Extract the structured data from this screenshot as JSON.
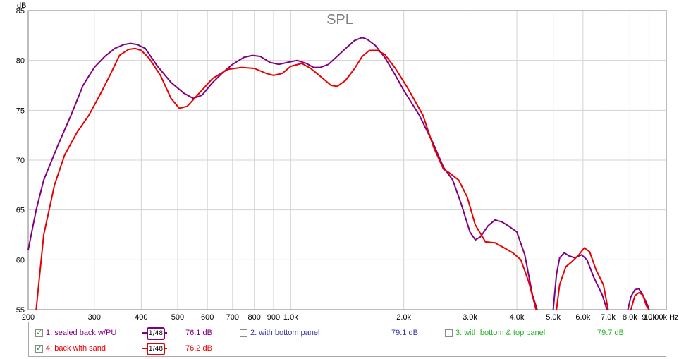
{
  "chart_data": {
    "type": "line",
    "title": "SPL",
    "ylabel": "dB",
    "x_unit": "Hz",
    "xscale": "log",
    "xlim": [
      200,
      10000
    ],
    "ylim": [
      55,
      85
    ],
    "grid": true,
    "x_ticks": [
      {
        "value": 200,
        "label": "200"
      },
      {
        "value": 300,
        "label": "300"
      },
      {
        "value": 400,
        "label": "400"
      },
      {
        "value": 500,
        "label": "500"
      },
      {
        "value": 600,
        "label": "600"
      },
      {
        "value": 700,
        "label": "700"
      },
      {
        "value": 800,
        "label": "800"
      },
      {
        "value": 900,
        "label": "900"
      },
      {
        "value": 1000,
        "label": "1.0k"
      },
      {
        "value": 2000,
        "label": "2.0k"
      },
      {
        "value": 3000,
        "label": "3.0k"
      },
      {
        "value": 4000,
        "label": "4.0k"
      },
      {
        "value": 5000,
        "label": "5.0k"
      },
      {
        "value": 6000,
        "label": "6.0k"
      },
      {
        "value": 7000,
        "label": "7.0k"
      },
      {
        "value": 8000,
        "label": "8.0k"
      },
      {
        "value": 9000,
        "label": "9.0k"
      },
      {
        "value": 10000,
        "label": "10.00k"
      }
    ],
    "y_ticks": [
      55,
      60,
      65,
      70,
      75,
      80,
      85
    ],
    "series": [
      {
        "name": "1: sealed back w/PU",
        "color": "#800080",
        "segments": [
          [
            [
              200,
              61
            ],
            [
              210,
              65
            ],
            [
              220,
              68
            ],
            [
              240,
              71.5
            ],
            [
              260,
              74.5
            ],
            [
              280,
              77.5
            ],
            [
              300,
              79.3
            ],
            [
              320,
              80.4
            ],
            [
              340,
              81.2
            ],
            [
              360,
              81.6
            ],
            [
              375,
              81.7
            ],
            [
              390,
              81.6
            ],
            [
              410,
              81.2
            ],
            [
              440,
              79.5
            ],
            [
              480,
              77.8
            ],
            [
              520,
              76.7
            ],
            [
              550,
              76.2
            ],
            [
              580,
              76.5
            ],
            [
              620,
              77.8
            ],
            [
              660,
              78.8
            ],
            [
              700,
              79.6
            ],
            [
              750,
              80.3
            ],
            [
              790,
              80.5
            ],
            [
              830,
              80.4
            ],
            [
              880,
              79.8
            ],
            [
              930,
              79.6
            ],
            [
              980,
              79.8
            ],
            [
              1040,
              80.0
            ],
            [
              1100,
              79.7
            ],
            [
              1150,
              79.3
            ],
            [
              1200,
              79.3
            ],
            [
              1260,
              79.6
            ],
            [
              1320,
              80.3
            ],
            [
              1400,
              81.2
            ],
            [
              1480,
              82.0
            ],
            [
              1550,
              82.3
            ],
            [
              1600,
              82.1
            ],
            [
              1680,
              81.5
            ],
            [
              1780,
              80.3
            ],
            [
              1900,
              78.5
            ],
            [
              2000,
              77.0
            ],
            [
              2200,
              74.5
            ],
            [
              2400,
              71.6
            ],
            [
              2550,
              69.3
            ],
            [
              2700,
              68.0
            ],
            [
              2850,
              65.5
            ],
            [
              3000,
              62.8
            ],
            [
              3100,
              62.0
            ],
            [
              3200,
              62.3
            ],
            [
              3350,
              63.4
            ],
            [
              3500,
              64.0
            ],
            [
              3650,
              63.8
            ],
            [
              3800,
              63.4
            ],
            [
              4000,
              62.8
            ],
            [
              4200,
              60.5
            ],
            [
              4400,
              56.5
            ],
            [
              4530,
              55.0
            ]
          ],
          [
            [
              5000,
              55.0
            ],
            [
              5100,
              58.5
            ],
            [
              5200,
              60.2
            ],
            [
              5350,
              60.7
            ],
            [
              5500,
              60.4
            ],
            [
              5700,
              60.2
            ],
            [
              5950,
              60.5
            ],
            [
              6150,
              60.0
            ],
            [
              6400,
              58.3
            ],
            [
              6750,
              56.5
            ],
            [
              6950,
              55.0
            ]
          ],
          [
            [
              7900,
              55.0
            ],
            [
              8050,
              56.3
            ],
            [
              8250,
              57.0
            ],
            [
              8450,
              57.1
            ],
            [
              8650,
              56.5
            ],
            [
              8900,
              55.5
            ],
            [
              9000,
              55.0
            ]
          ]
        ]
      },
      {
        "name": "4: back with sand",
        "color": "#e80000",
        "segments": [
          [
            [
              210,
              55
            ],
            [
              220,
              62.5
            ],
            [
              235,
              67.5
            ],
            [
              250,
              70.5
            ],
            [
              270,
              72.8
            ],
            [
              290,
              74.5
            ],
            [
              310,
              76.5
            ],
            [
              330,
              78.5
            ],
            [
              350,
              80.5
            ],
            [
              370,
              81.1
            ],
            [
              385,
              81.2
            ],
            [
              400,
              81
            ],
            [
              420,
              80.2
            ],
            [
              450,
              78.5
            ],
            [
              480,
              76.2
            ],
            [
              505,
              75.2
            ],
            [
              530,
              75.4
            ],
            [
              570,
              76.7
            ],
            [
              620,
              78.2
            ],
            [
              680,
              79.1
            ],
            [
              740,
              79.3
            ],
            [
              800,
              79.2
            ],
            [
              860,
              78.7
            ],
            [
              900,
              78.5
            ],
            [
              950,
              78.7
            ],
            [
              1000,
              79.4
            ],
            [
              1070,
              79.7
            ],
            [
              1130,
              79.2
            ],
            [
              1200,
              78.4
            ],
            [
              1280,
              77.5
            ],
            [
              1330,
              77.4
            ],
            [
              1400,
              78
            ],
            [
              1480,
              79.2
            ],
            [
              1550,
              80.4
            ],
            [
              1620,
              81.0
            ],
            [
              1700,
              81
            ],
            [
              1780,
              80.6
            ],
            [
              1900,
              79.2
            ],
            [
              2050,
              77.2
            ],
            [
              2250,
              74.5
            ],
            [
              2400,
              71.3
            ],
            [
              2550,
              69.1
            ],
            [
              2650,
              68.7
            ],
            [
              2800,
              68
            ],
            [
              2950,
              66.3
            ],
            [
              3100,
              63.5
            ],
            [
              3300,
              61.8
            ],
            [
              3500,
              61.7
            ],
            [
              3700,
              61.2
            ],
            [
              3900,
              60.7
            ],
            [
              4100,
              60
            ],
            [
              4300,
              57.8
            ],
            [
              4500,
              55.0
            ]
          ],
          [
            [
              5100,
              55.0
            ],
            [
              5200,
              57.5
            ],
            [
              5400,
              59.3
            ],
            [
              5600,
              59.8
            ],
            [
              5850,
              60.5
            ],
            [
              6050,
              61.2
            ],
            [
              6250,
              60.8
            ],
            [
              6500,
              59
            ],
            [
              6800,
              57.5
            ],
            [
              7000,
              55.0
            ]
          ],
          [
            [
              8050,
              55.0
            ],
            [
              8250,
              56.4
            ],
            [
              8450,
              56.7
            ],
            [
              8650,
              56.5
            ],
            [
              8850,
              55.4
            ],
            [
              9000,
              55.0
            ]
          ]
        ]
      }
    ]
  },
  "legend": {
    "items": [
      {
        "label": "1: sealed back w/PU",
        "checked": true,
        "color": "#800080",
        "smoothing": "1/48",
        "value": "76.1 dB"
      },
      {
        "label": "2: with bottom panel",
        "checked": false,
        "color": "#3636a8",
        "value": "79.1 dB"
      },
      {
        "label": "3: with bottom & top panel",
        "checked": false,
        "color": "#22b422",
        "value": "79.7 dB"
      },
      {
        "label": "4: back with sand",
        "checked": true,
        "color": "#e80000",
        "smoothing": "1/48",
        "value": "76.2 dB"
      }
    ]
  }
}
